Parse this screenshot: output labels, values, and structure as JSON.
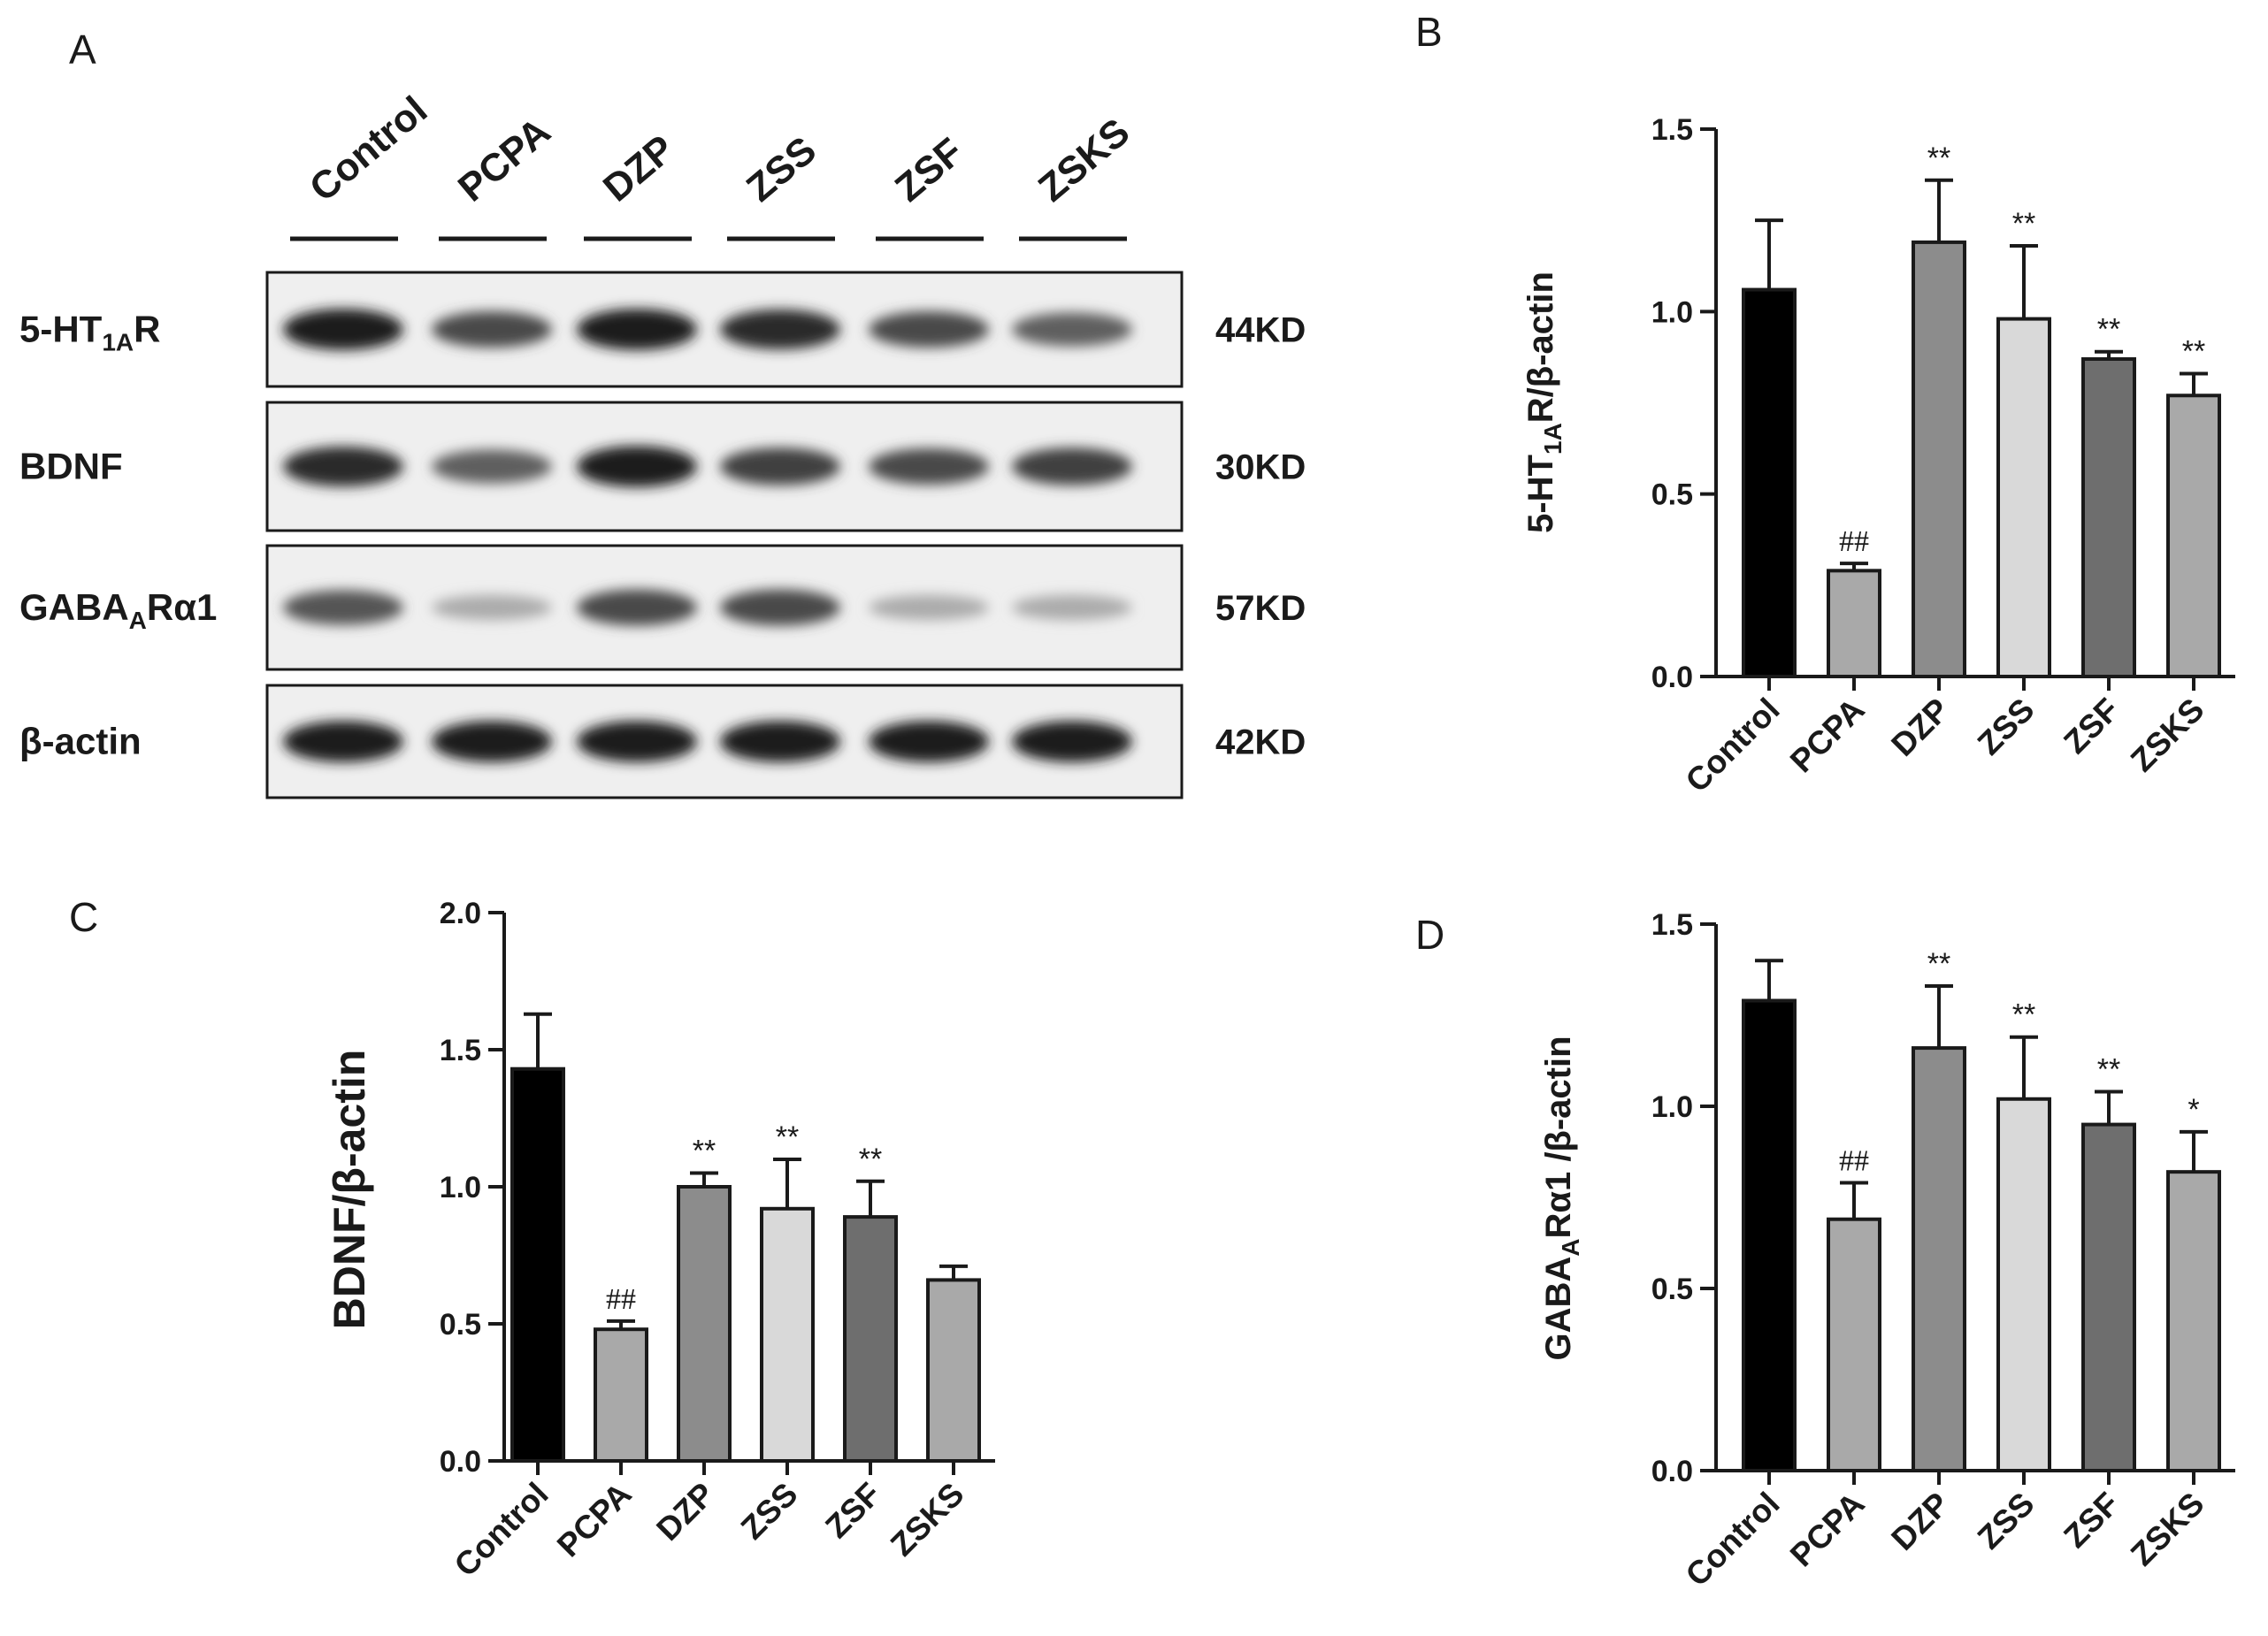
{
  "blot": {
    "panel_letter": "A",
    "lanes": [
      "Control",
      "PCPA",
      "DZP",
      "ZSS",
      "ZSF",
      "ZSKS"
    ],
    "rows": [
      {
        "label_main": "5-HT",
        "label_sub": "1A",
        "label_tail": "R",
        "kd": "44KD",
        "intensity": [
          0.95,
          0.75,
          0.95,
          0.9,
          0.75,
          0.65
        ]
      },
      {
        "label_main": "BDNF",
        "label_sub": "",
        "label_tail": "",
        "kd": "30KD",
        "intensity": [
          0.9,
          0.65,
          0.95,
          0.8,
          0.75,
          0.8
        ]
      },
      {
        "label_main": "GABA",
        "label_sub": "A",
        "label_tail": "Rα1",
        "kd": "57KD",
        "intensity": [
          0.7,
          0.3,
          0.75,
          0.75,
          0.3,
          0.3
        ]
      },
      {
        "label_main": "β-actin",
        "label_sub": "",
        "label_tail": "",
        "kd": "42KD",
        "intensity": [
          0.95,
          0.95,
          0.95,
          0.95,
          0.95,
          0.95
        ]
      }
    ]
  },
  "chart_data": [
    {
      "panel_letter": "B",
      "type": "bar",
      "categories": [
        "Control",
        "PCPA",
        "DZP",
        "ZSS",
        "ZSF",
        "ZSKS"
      ],
      "values": [
        1.06,
        0.29,
        1.19,
        0.98,
        0.87,
        0.77
      ],
      "errors": [
        0.19,
        0.02,
        0.17,
        0.2,
        0.02,
        0.06
      ],
      "annotations": [
        "",
        "##",
        "**",
        "**",
        "**",
        "**"
      ],
      "colors": [
        "#000000",
        "#a9a9a9",
        "#8c8c8c",
        "#d9d9d9",
        "#6e6e6e",
        "#a9a9a9"
      ],
      "ylabel_main": "5-HT",
      "ylabel_sub": "1A",
      "ylabel_tail": "R/β-actin",
      "ylim": [
        0,
        1.5
      ],
      "yticks": [
        "0.0",
        "0.5",
        "1.0",
        "1.5"
      ]
    },
    {
      "panel_letter": "C",
      "type": "bar",
      "categories": [
        "Control",
        "PCPA",
        "DZP",
        "ZSS",
        "ZSF",
        "ZSKS"
      ],
      "values": [
        1.43,
        0.48,
        1.0,
        0.92,
        0.89,
        0.66
      ],
      "errors": [
        0.2,
        0.03,
        0.05,
        0.18,
        0.13,
        0.05
      ],
      "annotations": [
        "",
        "##",
        "**",
        "**",
        "**",
        ""
      ],
      "colors": [
        "#000000",
        "#a9a9a9",
        "#8c8c8c",
        "#d9d9d9",
        "#6e6e6e",
        "#a9a9a9"
      ],
      "ylabel_main": "BDNF/β-actin",
      "ylabel_sub": "",
      "ylabel_tail": "",
      "ylim": [
        0,
        2.0
      ],
      "yticks": [
        "0.0",
        "0.5",
        "1.0",
        "1.5",
        "2.0"
      ]
    },
    {
      "panel_letter": "D",
      "type": "bar",
      "categories": [
        "Control",
        "PCPA",
        "DZP",
        "ZSS",
        "ZSF",
        "ZSKS"
      ],
      "values": [
        1.29,
        0.69,
        1.16,
        1.02,
        0.95,
        0.82
      ],
      "errors": [
        0.11,
        0.1,
        0.17,
        0.17,
        0.09,
        0.11
      ],
      "annotations": [
        "",
        "##",
        "**",
        "**",
        "**",
        "*"
      ],
      "colors": [
        "#000000",
        "#a9a9a9",
        "#8c8c8c",
        "#d9d9d9",
        "#6e6e6e",
        "#a9a9a9"
      ],
      "ylabel_main": "GABA",
      "ylabel_sub": "A",
      "ylabel_tail": "Rα1 /β-actin",
      "ylim": [
        0,
        1.5
      ],
      "yticks": [
        "0.0",
        "0.5",
        "1.0",
        "1.5"
      ]
    }
  ]
}
